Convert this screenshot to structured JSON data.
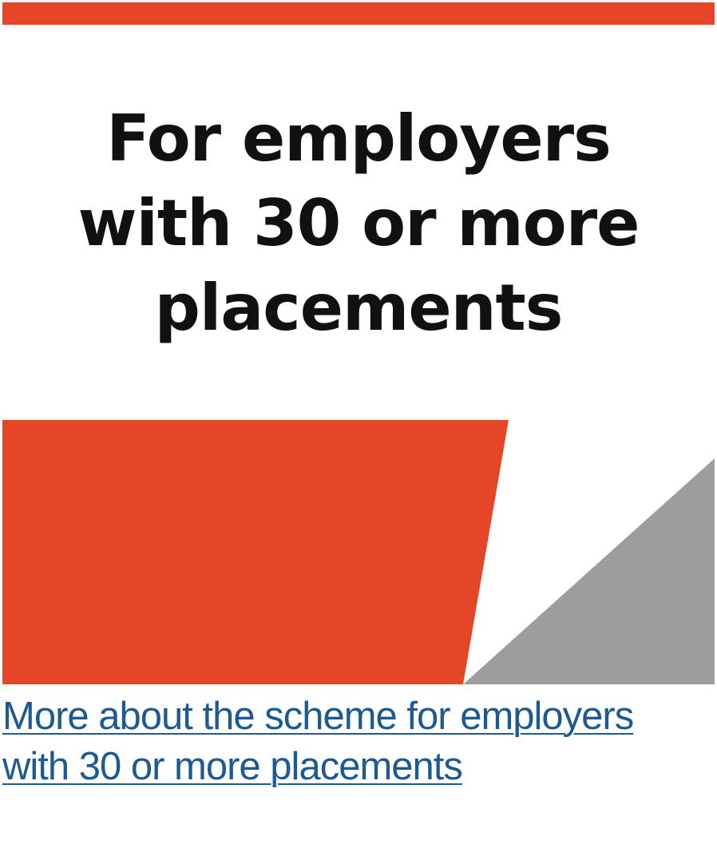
{
  "card": {
    "heading_lines": [
      "For employers",
      "with 30 or more",
      "placements"
    ]
  },
  "link": {
    "lines": [
      "More about the scheme for employers",
      "with 30 or more placements"
    ]
  },
  "colors": {
    "accent_red": "#e54628",
    "shape_grey": "#9e9d9e",
    "heading_text": "#111111",
    "link_blue": "#1d5a91",
    "background": "#ffffff"
  }
}
